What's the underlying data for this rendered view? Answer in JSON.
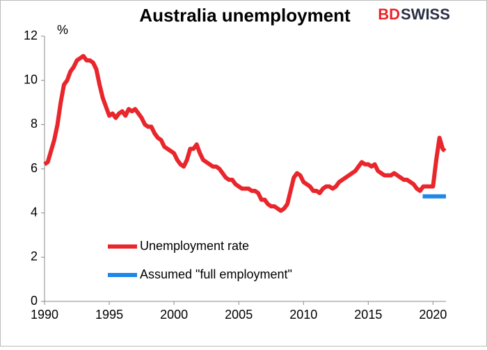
{
  "logo": {
    "part1": "BD",
    "part2": "SWISS"
  },
  "chart_data": {
    "type": "line",
    "title": "Australia unemployment",
    "y_unit_label": "%",
    "xlim": [
      1990,
      2021
    ],
    "xticks": [
      1990,
      1995,
      2000,
      2005,
      2010,
      2015,
      2020
    ],
    "ylim": [
      0,
      12
    ],
    "yticks": [
      0,
      2,
      4,
      6,
      8,
      10,
      12
    ],
    "grid": false,
    "series": [
      {
        "name": "Unemployment rate",
        "color": "#e8262b",
        "x": [
          1990.0,
          1990.25,
          1990.5,
          1990.75,
          1991.0,
          1991.25,
          1991.5,
          1991.75,
          1992.0,
          1992.25,
          1992.5,
          1992.75,
          1993.0,
          1993.25,
          1993.5,
          1993.75,
          1994.0,
          1994.25,
          1994.5,
          1994.75,
          1995.0,
          1995.25,
          1995.5,
          1995.75,
          1996.0,
          1996.25,
          1996.5,
          1996.75,
          1997.0,
          1997.25,
          1997.5,
          1997.75,
          1998.0,
          1998.25,
          1998.5,
          1998.75,
          1999.0,
          1999.25,
          1999.5,
          1999.75,
          2000.0,
          2000.25,
          2000.5,
          2000.75,
          2001.0,
          2001.25,
          2001.5,
          2001.75,
          2002.0,
          2002.25,
          2002.5,
          2002.75,
          2003.0,
          2003.25,
          2003.5,
          2003.75,
          2004.0,
          2004.25,
          2004.5,
          2004.75,
          2005.0,
          2005.25,
          2005.5,
          2005.75,
          2006.0,
          2006.25,
          2006.5,
          2006.75,
          2007.0,
          2007.25,
          2007.5,
          2007.75,
          2008.0,
          2008.25,
          2008.5,
          2008.75,
          2009.0,
          2009.25,
          2009.5,
          2009.75,
          2010.0,
          2010.25,
          2010.5,
          2010.75,
          2011.0,
          2011.25,
          2011.5,
          2011.75,
          2012.0,
          2012.25,
          2012.5,
          2012.75,
          2013.0,
          2013.25,
          2013.5,
          2013.75,
          2014.0,
          2014.25,
          2014.5,
          2014.75,
          2015.0,
          2015.25,
          2015.5,
          2015.75,
          2016.0,
          2016.25,
          2016.5,
          2016.75,
          2017.0,
          2017.25,
          2017.5,
          2017.75,
          2018.0,
          2018.25,
          2018.5,
          2018.75,
          2019.0,
          2019.25,
          2019.5,
          2019.75,
          2020.0,
          2020.25,
          2020.5,
          2020.75,
          2020.92
        ],
        "values": [
          6.2,
          6.3,
          6.8,
          7.3,
          8.0,
          9.0,
          9.8,
          10.0,
          10.4,
          10.6,
          10.9,
          11.0,
          11.1,
          10.9,
          10.9,
          10.8,
          10.5,
          9.8,
          9.2,
          8.8,
          8.4,
          8.5,
          8.3,
          8.5,
          8.6,
          8.4,
          8.7,
          8.6,
          8.7,
          8.5,
          8.3,
          8.0,
          7.9,
          7.9,
          7.6,
          7.4,
          7.3,
          7.0,
          6.9,
          6.8,
          6.7,
          6.4,
          6.2,
          6.1,
          6.4,
          6.9,
          6.9,
          7.1,
          6.7,
          6.4,
          6.3,
          6.2,
          6.1,
          6.1,
          6.0,
          5.8,
          5.6,
          5.5,
          5.5,
          5.3,
          5.2,
          5.1,
          5.1,
          5.1,
          5.0,
          5.0,
          4.9,
          4.6,
          4.6,
          4.4,
          4.3,
          4.3,
          4.2,
          4.1,
          4.2,
          4.4,
          5.0,
          5.6,
          5.8,
          5.7,
          5.4,
          5.3,
          5.2,
          5.0,
          5.0,
          4.9,
          5.1,
          5.2,
          5.2,
          5.1,
          5.2,
          5.4,
          5.5,
          5.6,
          5.7,
          5.8,
          5.9,
          6.1,
          6.3,
          6.2,
          6.2,
          6.1,
          6.2,
          5.9,
          5.8,
          5.7,
          5.7,
          5.7,
          5.8,
          5.7,
          5.6,
          5.5,
          5.5,
          5.4,
          5.3,
          5.1,
          5.0,
          5.2,
          5.2,
          5.2,
          5.2,
          6.4,
          7.4,
          6.9,
          6.8
        ]
      },
      {
        "name": "Assumed \"full employment\"",
        "color": "#1f87e8",
        "x": [
          2019.2,
          2021
        ],
        "values": [
          4.75,
          4.75
        ]
      }
    ]
  }
}
